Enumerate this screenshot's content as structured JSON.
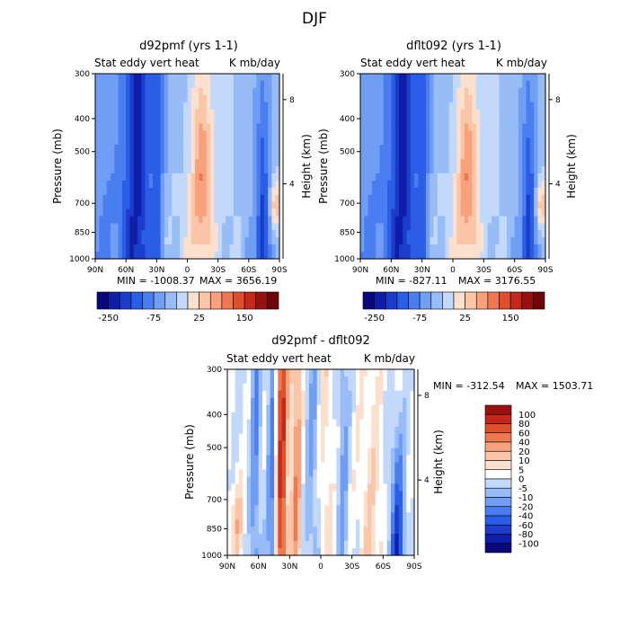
{
  "figure_title": "DJF",
  "palette_top": [
    "#08087a",
    "#0e1ea8",
    "#1c3dcc",
    "#2b5ee6",
    "#4a7ef0",
    "#6f9ef4",
    "#98bcf6",
    "#c3d9fb",
    "#fbe0ce",
    "#fbc6a8",
    "#f7a27d",
    "#ef7850",
    "#de4f2c",
    "#c4281a",
    "#9a1010",
    "#6e0606"
  ],
  "palette_diff": [
    "#08087a",
    "#0e1ea8",
    "#1c3dcc",
    "#2b5ee6",
    "#4a7ef0",
    "#6f9ef4",
    "#98bcf6",
    "#c3d9fb",
    "#ffffff",
    "#fbe0ce",
    "#fbc6a8",
    "#f7a27d",
    "#ef7850",
    "#de4f2c",
    "#c4281a",
    "#9a1010"
  ],
  "chart_data": [
    {
      "type": "heatmap",
      "title": "d92pmf (yrs 1-1)",
      "subtitle_left": "Stat eddy vert heat",
      "subtitle_right": "K mb/day",
      "ylabel": "Pressure (mb)",
      "ylabel_right": "Height (km)",
      "x_ticks": [
        "90N",
        "60N",
        "30N",
        "0",
        "30S",
        "60S",
        "90S"
      ],
      "y_ticks": [
        "300",
        "400",
        "500",
        "700",
        "850",
        "1000"
      ],
      "y_right_ticks": [
        "8",
        "4"
      ],
      "min_text": "MIN = -1008.37",
      "max_text": "MAX = 3656.19",
      "colorbar_labels": [
        "-250",
        "-75",
        "25",
        "150"
      ],
      "pattern": "model"
    },
    {
      "type": "heatmap",
      "title": "dflt092 (yrs 1-1)",
      "subtitle_left": "Stat eddy vert heat",
      "subtitle_right": "K mb/day",
      "ylabel": "Pressure (mb)",
      "ylabel_right": "Height (km)",
      "x_ticks": [
        "90N",
        "60N",
        "30N",
        "0",
        "30S",
        "60S",
        "90S"
      ],
      "y_ticks": [
        "300",
        "400",
        "500",
        "700",
        "850",
        "1000"
      ],
      "y_right_ticks": [
        "8",
        "4"
      ],
      "min_text": "MIN = -827.11",
      "max_text": "MAX = 3176.55",
      "colorbar_labels": [
        "-250",
        "-75",
        "25",
        "150"
      ],
      "pattern": "model"
    },
    {
      "type": "heatmap",
      "title": "d92pmf - dflt092",
      "subtitle_left": "Stat eddy vert heat",
      "subtitle_right": "K mb/day",
      "ylabel": "Pressure (mb)",
      "ylabel_right": "Height (km)",
      "x_ticks": [
        "90N",
        "60N",
        "30N",
        "0",
        "30S",
        "60S",
        "90S"
      ],
      "y_ticks": [
        "300",
        "400",
        "500",
        "700",
        "850",
        "1000"
      ],
      "y_right_ticks": [
        "8",
        "4"
      ],
      "min_text": "MIN = -312.54",
      "max_text": "MAX = 1503.71",
      "colorbar_labels": [
        "100",
        "80",
        "60",
        "40",
        "20",
        "10",
        "5",
        "0",
        "-5",
        "-10",
        "-20",
        "-40",
        "-60",
        "-80",
        "-100"
      ],
      "pattern": "diff"
    }
  ]
}
